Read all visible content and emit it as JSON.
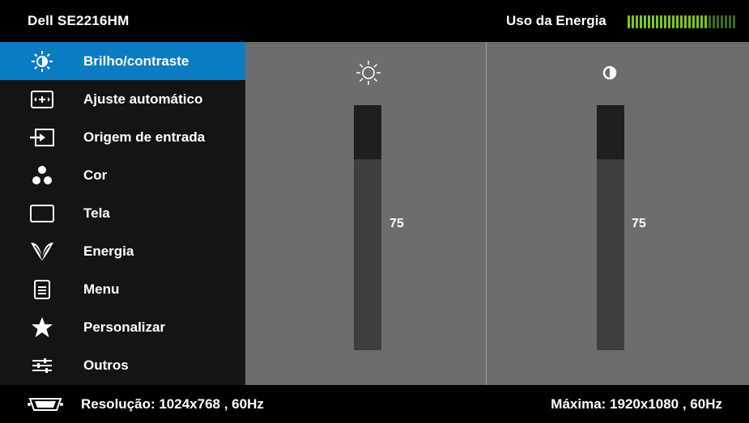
{
  "header": {
    "model": "Dell  SE2216HM",
    "energy_label": "Uso da Energia",
    "energy_level": 0.74
  },
  "menu": {
    "items": [
      {
        "label": "Brilho/contraste",
        "icon": "brightness-icon",
        "active": true
      },
      {
        "label": "Ajuste automático",
        "icon": "auto-adjust-icon",
        "active": false
      },
      {
        "label": "Origem de entrada",
        "icon": "input-source-icon",
        "active": false
      },
      {
        "label": "Cor",
        "icon": "color-icon",
        "active": false
      },
      {
        "label": "Tela",
        "icon": "display-icon",
        "active": false
      },
      {
        "label": "Energia",
        "icon": "energy-leaf-icon",
        "active": false
      },
      {
        "label": "Menu",
        "icon": "menu-icon",
        "active": false
      },
      {
        "label": "Personalizar",
        "icon": "star-icon",
        "active": false
      },
      {
        "label": "Outros",
        "icon": "others-icon",
        "active": false
      }
    ]
  },
  "brightness": {
    "value": "75",
    "level": 0.75,
    "icon": "brightness-icon"
  },
  "contrast": {
    "value": "75",
    "level": 0.75,
    "icon": "contrast-icon"
  },
  "footer": {
    "resolution": "Resolução: 1024x768 , 60Hz",
    "maximum": "Máxima: 1920x1080 , 60Hz",
    "icon": "vga-connector-icon"
  },
  "colors": {
    "accent": "#0a7cc4",
    "sidebar_bg": "#141414",
    "content_bg": "#6d6d6d",
    "meter_on": "#7cc61a",
    "meter_off": "#3e6a1e"
  }
}
